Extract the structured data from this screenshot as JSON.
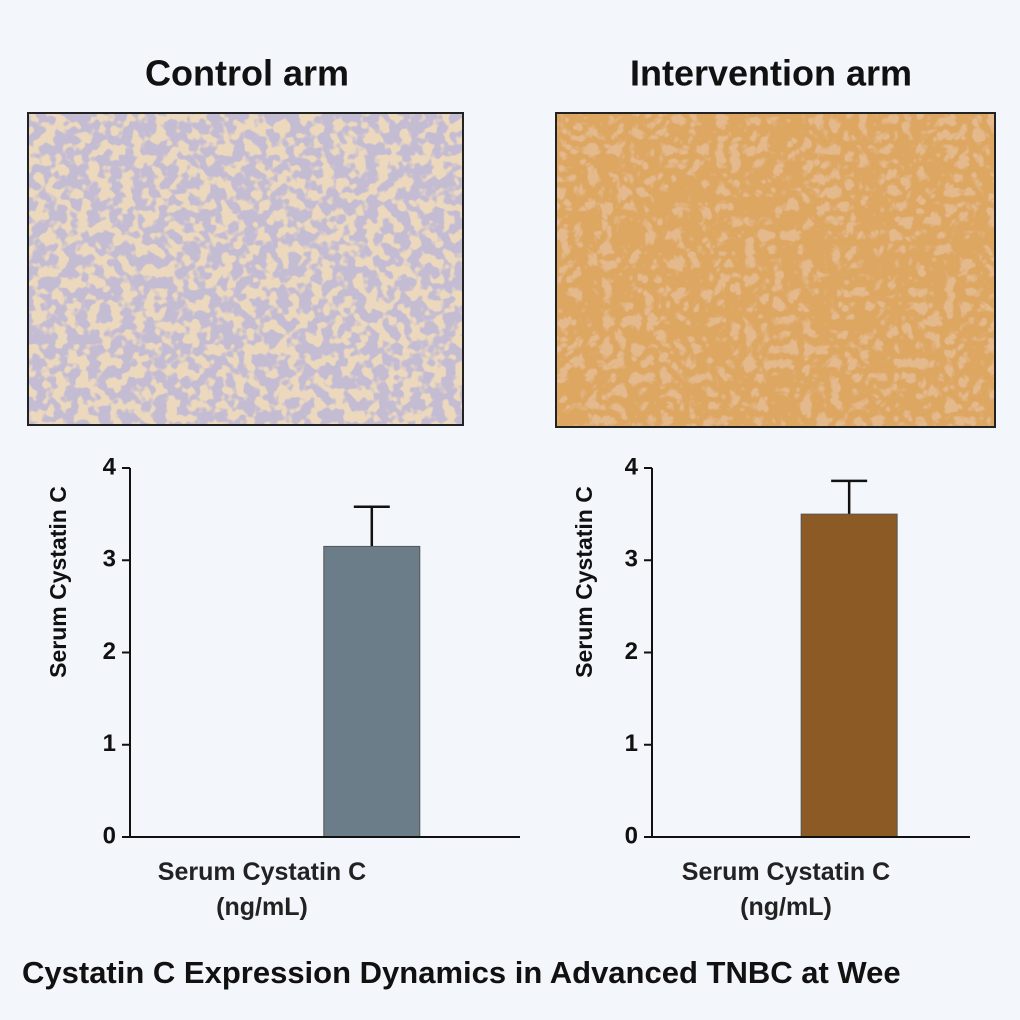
{
  "title": "Cystatin C Expression Dynamics in Advanced TNBC at Wee",
  "chart_data": [
    {
      "type": "bar",
      "title": "Control arm",
      "y_label": "Serum Cystatin C",
      "x_label": "Serum Cystatin C (ng/mL)",
      "categories": [
        null
      ],
      "values": [
        3.15
      ],
      "errors": [
        0.43
      ],
      "color": "#6b7d88",
      "ylim": [
        0,
        4
      ],
      "yticks": [
        0,
        1,
        2,
        3,
        4
      ]
    },
    {
      "type": "bar",
      "title": "Intervention arm",
      "y_label": "Serum Cystatin C",
      "x_label": "Serum Cystatin C (ng/mL)",
      "categories": [
        null
      ],
      "values": [
        3.5
      ],
      "errors": [
        0.36
      ],
      "color": "#8c5a24",
      "ylim": [
        0,
        4
      ],
      "yticks": [
        0,
        1,
        2,
        3,
        4
      ]
    }
  ]
}
